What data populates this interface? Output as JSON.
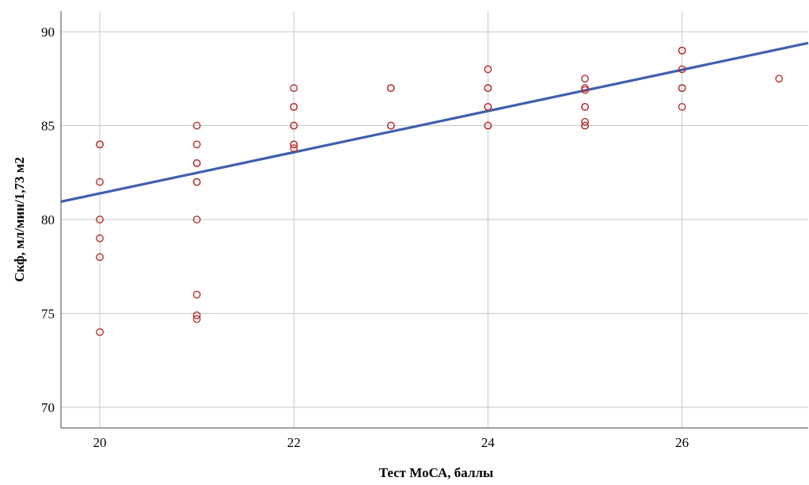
{
  "chart_data": {
    "type": "scatter",
    "title": "",
    "xlabel": "Тест МоСА, баллы",
    "ylabel": "Скф, мл/мин/1,73 м2",
    "xlim": [
      19.6,
      27.3
    ],
    "ylim": [
      68.9,
      91.1
    ],
    "x_ticks": [
      20,
      22,
      24,
      26
    ],
    "y_ticks": [
      70,
      75,
      80,
      85,
      90
    ],
    "grid": true,
    "legend": "none",
    "colors": {
      "points": "#b5302e",
      "fit_line": "#3f5fae",
      "grid": "#c8c8c8",
      "axis": "#444444"
    },
    "points": [
      {
        "x": 20,
        "y": 84
      },
      {
        "x": 20,
        "y": 84
      },
      {
        "x": 20,
        "y": 82
      },
      {
        "x": 20,
        "y": 80
      },
      {
        "x": 20,
        "y": 79
      },
      {
        "x": 20,
        "y": 78
      },
      {
        "x": 20,
        "y": 74
      },
      {
        "x": 21,
        "y": 85
      },
      {
        "x": 21,
        "y": 84
      },
      {
        "x": 21,
        "y": 83
      },
      {
        "x": 21,
        "y": 83
      },
      {
        "x": 21,
        "y": 82
      },
      {
        "x": 21,
        "y": 82
      },
      {
        "x": 21,
        "y": 80
      },
      {
        "x": 21,
        "y": 76
      },
      {
        "x": 21,
        "y": 74.9
      },
      {
        "x": 21,
        "y": 74.7
      },
      {
        "x": 22,
        "y": 87
      },
      {
        "x": 22,
        "y": 86
      },
      {
        "x": 22,
        "y": 86
      },
      {
        "x": 22,
        "y": 85
      },
      {
        "x": 22,
        "y": 85
      },
      {
        "x": 22,
        "y": 84
      },
      {
        "x": 22,
        "y": 84
      },
      {
        "x": 22,
        "y": 83.8
      },
      {
        "x": 23,
        "y": 87
      },
      {
        "x": 23,
        "y": 87
      },
      {
        "x": 23,
        "y": 85
      },
      {
        "x": 23,
        "y": 85
      },
      {
        "x": 24,
        "y": 88
      },
      {
        "x": 24,
        "y": 87
      },
      {
        "x": 24,
        "y": 87
      },
      {
        "x": 24,
        "y": 86
      },
      {
        "x": 24,
        "y": 86
      },
      {
        "x": 24,
        "y": 85
      },
      {
        "x": 24,
        "y": 85
      },
      {
        "x": 25,
        "y": 87.5
      },
      {
        "x": 25,
        "y": 87
      },
      {
        "x": 25,
        "y": 86.9
      },
      {
        "x": 25,
        "y": 86
      },
      {
        "x": 25,
        "y": 86
      },
      {
        "x": 25,
        "y": 85.2
      },
      {
        "x": 25,
        "y": 85
      },
      {
        "x": 25,
        "y": 85
      },
      {
        "x": 26,
        "y": 89
      },
      {
        "x": 26,
        "y": 89
      },
      {
        "x": 26,
        "y": 88
      },
      {
        "x": 26,
        "y": 87
      },
      {
        "x": 26,
        "y": 87
      },
      {
        "x": 26,
        "y": 86
      },
      {
        "x": 27,
        "y": 87.5
      }
    ],
    "fit_line": {
      "x": [
        19.6,
        27.3
      ],
      "y": [
        80.95,
        89.4
      ]
    }
  }
}
